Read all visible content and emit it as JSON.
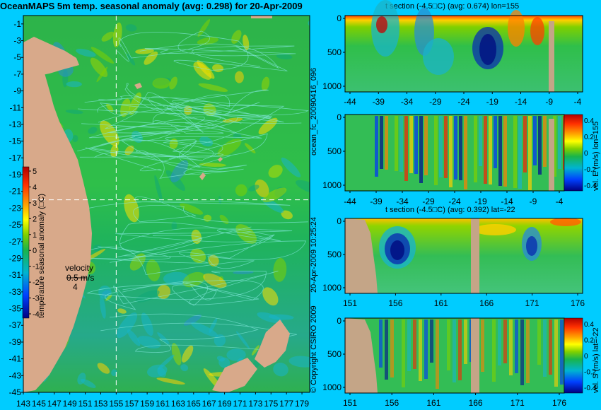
{
  "main_title": "OceanMAPS 5m temp. seasonal anomaly (avg: 0.298) for 20-Apr-2009",
  "side_texts": {
    "fc": "ocean_fc_20090416_096",
    "date": "20-Apr-2009 10:25:24",
    "copyright": "© Copyright CSIRO 2009"
  },
  "colors": {
    "background": "#00CCFF",
    "land": "#D8A98A",
    "section_land": "#C4A587",
    "crosshair": "#FFFFFF"
  },
  "chart_data": [
    {
      "type": "heatmap",
      "id": "map",
      "title": "OceanMAPS 5m temp. seasonal anomaly (avg: 0.298) for 20-Apr-2009",
      "x_ticks": [
        "143",
        "145",
        "147",
        "149",
        "151",
        "153",
        "155",
        "157",
        "159",
        "161",
        "163",
        "165",
        "167",
        "169",
        "171",
        "173",
        "175",
        "177",
        "179"
      ],
      "y_ticks": [
        "-1",
        "-3",
        "-5",
        "-7",
        "-9",
        "-11",
        "-13",
        "-15",
        "-17",
        "-19",
        "-21",
        "-23",
        "-25",
        "-27",
        "-29",
        "-31",
        "-33",
        "-35",
        "-37",
        "-39",
        "-41",
        "-43",
        "-45"
      ],
      "xlim": [
        143,
        180
      ],
      "ylim": [
        -45,
        0
      ],
      "crosshair": {
        "lon": 155,
        "lat": -22
      },
      "colorbar": {
        "label": "temperature seasonal anomaly (□C)",
        "ticks": [
          "5",
          "4",
          "3",
          "2",
          "1",
          "0",
          "-1",
          "-2",
          "-3",
          "-4"
        ],
        "range": [
          -4,
          5
        ]
      },
      "velocity_key": {
        "lines": [
          "velocity",
          "0.5 m/s",
          "4"
        ]
      }
    },
    {
      "type": "heatmap",
      "id": "t_lon",
      "title": "t section (-4.5□C) (avg: 0.674) lon=155",
      "x_ticks": [
        "-44",
        "-39",
        "-34",
        "-29",
        "-24",
        "-19",
        "-14",
        "-9",
        "-4"
      ],
      "y_ticks": [
        "0",
        "500",
        "1000"
      ],
      "xlim": [
        -45,
        0
      ],
      "ylim": [
        1000,
        0
      ]
    },
    {
      "type": "heatmap",
      "id": "u_lon",
      "title": "",
      "x_ticks": [
        "-44",
        "-39",
        "-34",
        "-29",
        "-24",
        "-19",
        "-14",
        "-9",
        "-4"
      ],
      "y_ticks": [
        "0",
        "500",
        "1000"
      ],
      "colorbar": {
        "label": "vel. E (m/s) lon=155",
        "ticks": [
          "0.4",
          "0.2",
          "0",
          "-0.2",
          "-0.4"
        ],
        "range": [
          -0.4,
          0.4
        ]
      }
    },
    {
      "type": "heatmap",
      "id": "t_lat",
      "title": "t section (-4.5□C) (avg: 0.392) lat=-22",
      "x_ticks": [
        "151",
        "156",
        "161",
        "166",
        "171",
        "176"
      ],
      "y_ticks": [
        "0",
        "500",
        "1000"
      ],
      "xlim": [
        150,
        180
      ],
      "ylim": [
        1000,
        0
      ]
    },
    {
      "type": "heatmap",
      "id": "v_lat",
      "title": "",
      "x_ticks": [
        "151",
        "156",
        "161",
        "166",
        "171",
        "176"
      ],
      "y_ticks": [
        "0",
        "500",
        "1000"
      ],
      "colorbar": {
        "label": "vel. S (m/s) lat=-22",
        "ticks": [
          "0.4",
          "0.2",
          "0",
          "-0.2",
          "-0.4"
        ],
        "range": [
          -0.4,
          0.4
        ]
      }
    }
  ]
}
